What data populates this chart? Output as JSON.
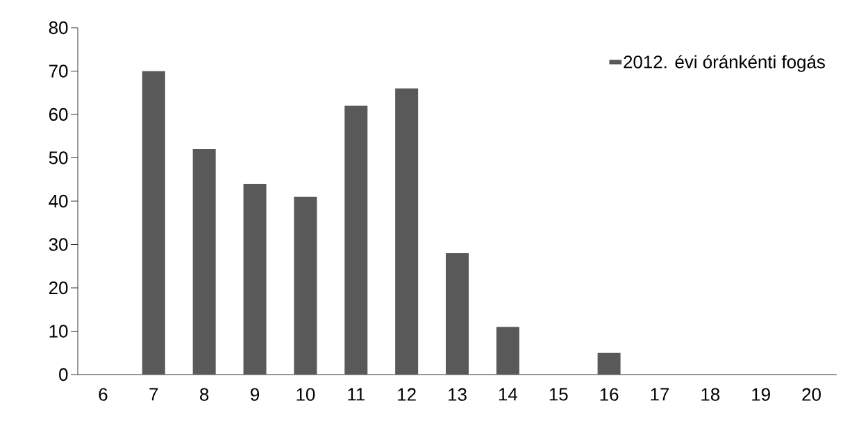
{
  "chart_data": {
    "type": "bar",
    "categories": [
      "6",
      "7",
      "8",
      "9",
      "10",
      "11",
      "12",
      "13",
      "14",
      "15",
      "16",
      "17",
      "18",
      "19",
      "20"
    ],
    "series": [
      {
        "name": "2012. évi óránkénti fogás",
        "color": "#595959",
        "values": [
          0,
          70,
          52,
          44,
          41,
          62,
          66,
          28,
          11,
          0,
          5,
          0,
          0,
          0,
          0
        ]
      }
    ],
    "ylim": [
      0,
      80
    ],
    "yticks": [
      0,
      10,
      20,
      30,
      40,
      50,
      60,
      70,
      80
    ],
    "legend": "top right"
  }
}
